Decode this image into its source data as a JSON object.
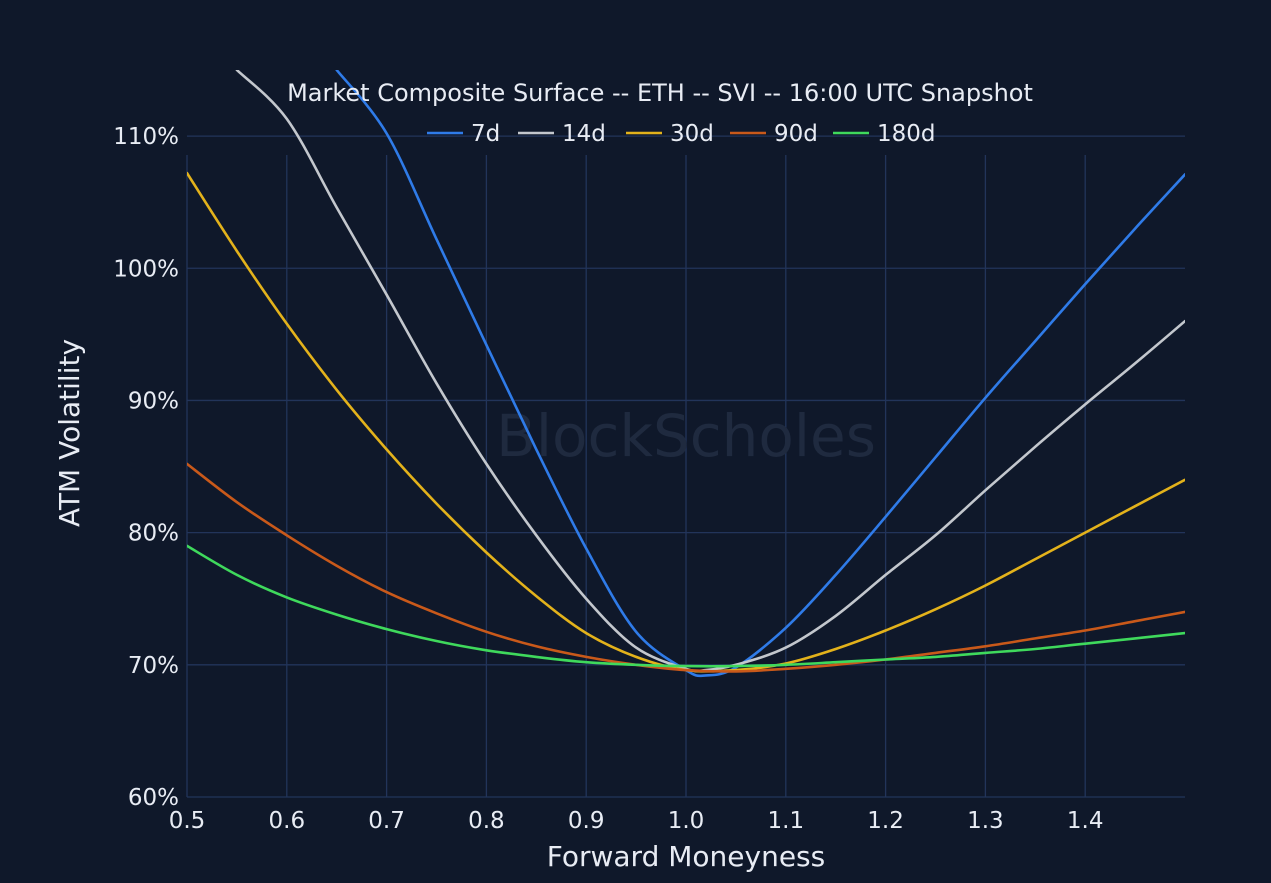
{
  "chart_data": {
    "type": "line",
    "title": "Market Composite Surface -- ETH -- SVI -- 16:00 UTC Snapshot",
    "xlabel": "Forward Moneyness",
    "ylabel": "ATM Volatility",
    "watermark": "BlockScholes",
    "xlim": [
      0.5,
      1.5
    ],
    "ylim": [
      60,
      115
    ],
    "x_ticks": [
      0.5,
      0.6,
      0.7,
      0.8,
      0.9,
      1.0,
      1.1,
      1.2,
      1.3,
      1.4
    ],
    "x_tick_labels": [
      "0.5",
      "0.6",
      "0.7",
      "0.8",
      "0.9",
      "1.0",
      "1.1",
      "1.2",
      "1.3",
      "1.4"
    ],
    "y_ticks": [
      60,
      70,
      80,
      90,
      100,
      110
    ],
    "y_tick_labels": [
      "60%",
      "70%",
      "80%",
      "90%",
      "100%",
      "110%"
    ],
    "grid": true,
    "legend_position": "top-center",
    "series": [
      {
        "name": "7d",
        "color": "#2f7be8",
        "x": [
          0.65,
          0.7,
          0.75,
          0.8,
          0.85,
          0.9,
          0.95,
          1.0,
          1.02,
          1.05,
          1.1,
          1.15,
          1.2,
          1.25,
          1.3,
          1.35,
          1.4,
          1.45,
          1.5
        ],
        "y": [
          115,
          110.2,
          102.2,
          94.2,
          86.3,
          78.8,
          72.5,
          69.6,
          69.2,
          69.8,
          72.8,
          76.8,
          81.2,
          85.7,
          90.2,
          94.5,
          98.8,
          103,
          107.1
        ]
      },
      {
        "name": "14d",
        "color": "#c3c7cd",
        "x": [
          0.55,
          0.6,
          0.65,
          0.7,
          0.75,
          0.8,
          0.85,
          0.9,
          0.95,
          1.0,
          1.02,
          1.05,
          1.1,
          1.15,
          1.2,
          1.25,
          1.3,
          1.35,
          1.4,
          1.45,
          1.5
        ],
        "y": [
          115,
          111.3,
          104.6,
          98,
          91.3,
          85.2,
          79.8,
          75,
          71.3,
          69.7,
          69.6,
          70,
          71.3,
          73.7,
          76.8,
          79.8,
          83.2,
          86.5,
          89.7,
          92.8,
          96
        ]
      },
      {
        "name": "30d",
        "color": "#e3b21b",
        "x": [
          0.5,
          0.55,
          0.6,
          0.65,
          0.7,
          0.75,
          0.8,
          0.85,
          0.9,
          0.95,
          1.0,
          1.05,
          1.1,
          1.15,
          1.2,
          1.25,
          1.3,
          1.35,
          1.4,
          1.45,
          1.5
        ],
        "y": [
          107.2,
          101.3,
          95.8,
          90.8,
          86.3,
          82.2,
          78.5,
          75.2,
          72.4,
          70.6,
          69.6,
          69.6,
          70.1,
          71.2,
          72.6,
          74.2,
          76,
          78,
          80,
          82,
          84
        ]
      },
      {
        "name": "90d",
        "color": "#c9591a",
        "x": [
          0.5,
          0.55,
          0.6,
          0.65,
          0.7,
          0.75,
          0.8,
          0.85,
          0.9,
          0.95,
          1.0,
          1.05,
          1.1,
          1.15,
          1.2,
          1.25,
          1.3,
          1.35,
          1.4,
          1.45,
          1.5
        ],
        "y": [
          85.2,
          82.3,
          79.8,
          77.5,
          75.5,
          73.9,
          72.5,
          71.4,
          70.6,
          70,
          69.6,
          69.5,
          69.7,
          70,
          70.4,
          70.9,
          71.4,
          72,
          72.6,
          73.3,
          74
        ]
      },
      {
        "name": "180d",
        "color": "#3fd95c",
        "x": [
          0.5,
          0.55,
          0.6,
          0.65,
          0.7,
          0.75,
          0.8,
          0.85,
          0.9,
          0.95,
          1.0,
          1.05,
          1.1,
          1.15,
          1.2,
          1.25,
          1.3,
          1.35,
          1.4,
          1.45,
          1.5
        ],
        "y": [
          79,
          76.8,
          75.1,
          73.8,
          72.7,
          71.8,
          71.1,
          70.6,
          70.2,
          70,
          69.9,
          69.9,
          70,
          70.2,
          70.4,
          70.6,
          70.9,
          71.2,
          71.6,
          72,
          72.4
        ]
      }
    ]
  }
}
